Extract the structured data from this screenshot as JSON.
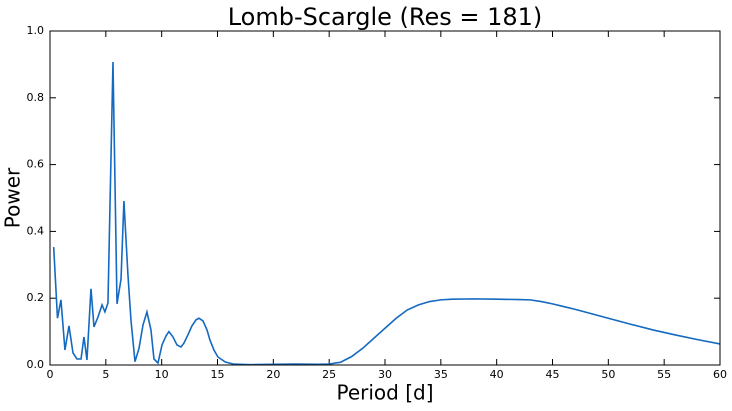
{
  "chart_data": {
    "type": "line",
    "title": "Lomb-Scargle (Res = 181)",
    "x_label": "Period [d]",
    "y_label": "Power",
    "color": "#1469c0",
    "grid": false,
    "xlim": [
      0,
      60
    ],
    "ylim": [
      0,
      1
    ],
    "xticks": [
      0,
      5,
      10,
      15,
      20,
      25,
      30,
      35,
      40,
      45,
      50,
      55,
      60
    ],
    "yticks": [
      {
        "value": 0,
        "label": "0.0"
      },
      0.2,
      0.4,
      0.6,
      0.8,
      {
        "value": 1,
        "label": "1.0"
      }
    ],
    "x": [
      0.33,
      0.67,
      0.98,
      1.34,
      1.7,
      2.06,
      2.42,
      2.78,
      3.04,
      3.31,
      3.67,
      3.94,
      4.3,
      4.66,
      4.92,
      5.19,
      5.64,
      6.0,
      6.36,
      6.62,
      6.98,
      7.25,
      7.61,
      7.97,
      8.33,
      8.68,
      9.04,
      9.31,
      9.67,
      10.03,
      10.39,
      10.65,
      11.01,
      11.37,
      11.73,
      12.0,
      12.35,
      12.71,
      13.07,
      13.34,
      13.7,
      14.06,
      14.32,
      14.68,
      15.04,
      15.7,
      16.4,
      17.9,
      20,
      22,
      24,
      25,
      26,
      27,
      28,
      29,
      30,
      31,
      32,
      33,
      34,
      35,
      36,
      38,
      40,
      42,
      43,
      44,
      45,
      46,
      47,
      48,
      49,
      50,
      52,
      54,
      56,
      58,
      60
    ],
    "values": [
      0.353,
      0.14,
      0.195,
      0.045,
      0.117,
      0.036,
      0.018,
      0.018,
      0.084,
      0.015,
      0.228,
      0.114,
      0.144,
      0.18,
      0.159,
      0.186,
      0.907,
      0.183,
      0.257,
      0.491,
      0.27,
      0.135,
      0.01,
      0.05,
      0.12,
      0.159,
      0.105,
      0.018,
      0.006,
      0.06,
      0.087,
      0.1,
      0.084,
      0.06,
      0.054,
      0.066,
      0.09,
      0.117,
      0.135,
      0.14,
      0.132,
      0.105,
      0.075,
      0.045,
      0.024,
      0.009,
      0.003,
      0.001,
      0.002,
      0.003,
      0.002,
      0.003,
      0.008,
      0.025,
      0.05,
      0.08,
      0.11,
      0.14,
      0.165,
      0.18,
      0.19,
      0.195,
      0.197,
      0.198,
      0.197,
      0.196,
      0.195,
      0.19,
      0.183,
      0.175,
      0.167,
      0.158,
      0.149,
      0.14,
      0.122,
      0.105,
      0.09,
      0.076,
      0.063
    ]
  }
}
